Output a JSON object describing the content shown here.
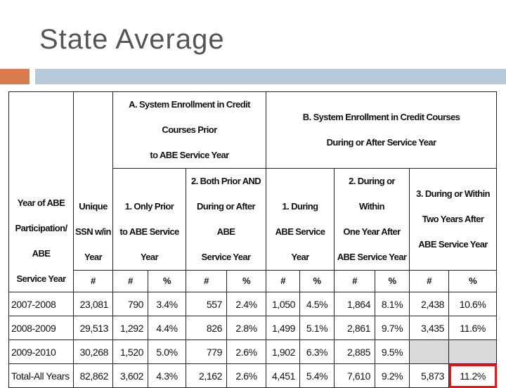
{
  "title": "State Average",
  "table": {
    "col_year": [
      "Year of ABE",
      "Participation/ ABE",
      "Service Year"
    ],
    "col_unique": [
      "Unique",
      "SSN w/in",
      "Year"
    ],
    "group_a": [
      "A. System Enrollment in Credit Courses Prior",
      "to ABE Service Year"
    ],
    "group_b": [
      "B. System Enrollment in Credit Courses",
      "During or After Service Year"
    ],
    "sub_a1": [
      "1. Only Prior",
      "to ABE Service Year"
    ],
    "sub_a2": [
      "2. Both Prior AND",
      "During or After ABE",
      "Service Year"
    ],
    "sub_b1": [
      "1. During",
      "ABE Service Year"
    ],
    "sub_b2": [
      "2. During or Within",
      "One Year After",
      "ABE Service Year"
    ],
    "sub_b3": [
      "3. During or Within",
      "Two Years After",
      "ABE Service Year"
    ],
    "sym_hash": "#",
    "sym_pct": "%",
    "rows": [
      {
        "year": "2007-2008",
        "unique": "23,081",
        "a1n": "790",
        "a1p": "3.4%",
        "a2n": "557",
        "a2p": "2.4%",
        "b1n": "1,050",
        "b1p": "4.5%",
        "b2n": "1,864",
        "b2p": "8.1%",
        "b3n": "2,438",
        "b3p": "10.6%"
      },
      {
        "year": "2008-2009",
        "unique": "29,513",
        "a1n": "1,292",
        "a1p": "4.4%",
        "a2n": "826",
        "a2p": "2.8%",
        "b1n": "1,499",
        "b1p": "5.1%",
        "b2n": "2,861",
        "b2p": "9.7%",
        "b3n": "3,435",
        "b3p": "11.6%"
      },
      {
        "year": "2009-2010",
        "unique": "30,268",
        "a1n": "1,520",
        "a1p": "5.0%",
        "a2n": "779",
        "a2p": "2.6%",
        "b1n": "1,902",
        "b1p": "6.3%",
        "b2n": "2,885",
        "b2p": "9.5%",
        "b3n": "",
        "b3p": ""
      },
      {
        "year": "Total-All Years",
        "unique": "82,862",
        "a1n": "3,602",
        "a1p": "4.3%",
        "a2n": "2,162",
        "a2p": "2.6%",
        "b1n": "4,451",
        "b1p": "5.4%",
        "b2n": "7,610",
        "b2p": "9.2%",
        "b3n": "5,873",
        "b3p": "11.2%"
      }
    ],
    "highlight_color": "#e8141b",
    "empty_cell_color": "#d9d9d9"
  }
}
